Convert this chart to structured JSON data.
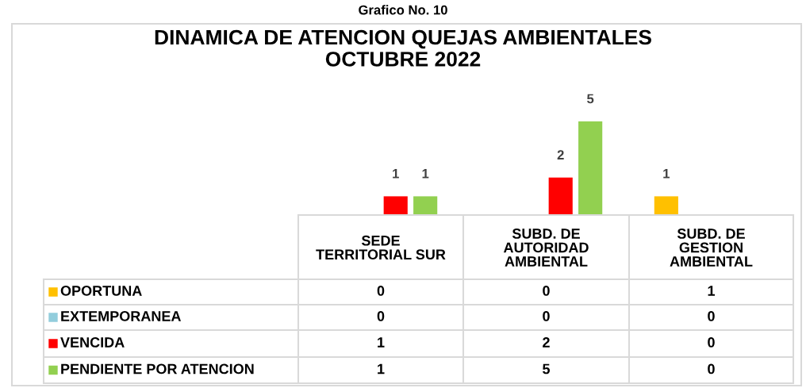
{
  "chart_data": {
    "type": "bar",
    "title": "DINAMICA DE ATENCION QUEJAS AMBIENTALES\nOCTUBRE 2022",
    "annotations": [
      "Grafico No. 10"
    ],
    "categories": [
      "SEDE\nTERRITORIAL SUR",
      "SUBD. DE\nAUTORIDAD\nAMBIENTAL",
      "SUBD. DE\nGESTION\nAMBIENTAL"
    ],
    "series": [
      {
        "name": "OPORTUNA",
        "color": "#ffc000",
        "values": [
          0,
          0,
          1
        ],
        "value_labels": [
          "0",
          "0",
          "1"
        ]
      },
      {
        "name": "EXTEMPORANEA",
        "color": "#92cddc",
        "values": [
          0,
          0,
          0
        ],
        "value_labels": [
          "0",
          "0",
          "0"
        ]
      },
      {
        "name": "VENCIDA",
        "color": "#ff0000",
        "values": [
          1,
          2,
          0
        ],
        "value_labels": [
          "1",
          "2",
          "0"
        ]
      },
      {
        "name": "PENDIENTE POR ATENCION",
        "color": "#92d050",
        "values": [
          1,
          5,
          0
        ],
        "value_labels": [
          "1",
          "5",
          "0"
        ]
      }
    ],
    "legend": "bottom"
  }
}
